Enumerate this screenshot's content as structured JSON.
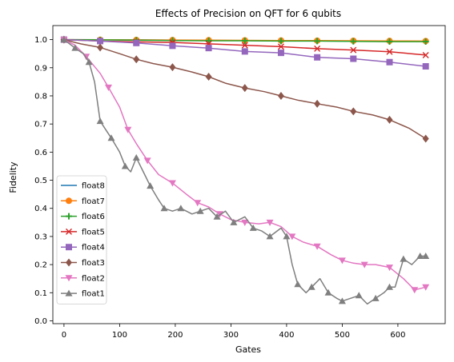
{
  "chart_data": {
    "type": "line",
    "title": "Effects of Precision on QFT for 6 qubits",
    "xlabel": "Gates",
    "ylabel": "Fidelity",
    "xlim": [
      -20,
      685
    ],
    "ylim": [
      -0.01,
      1.05
    ],
    "xticks": [
      0,
      100,
      200,
      300,
      400,
      500,
      600
    ],
    "yticks": [
      0.0,
      0.1,
      0.2,
      0.3,
      0.4,
      0.5,
      0.6,
      0.7,
      0.8,
      0.9,
      1.0
    ],
    "xtick_labels": [
      "0",
      "100",
      "200",
      "300",
      "400",
      "500",
      "600"
    ],
    "ytick_labels": [
      "0.0",
      "0.1",
      "0.2",
      "0.3",
      "0.4",
      "0.5",
      "0.6",
      "0.7",
      "0.8",
      "0.9",
      "1.0"
    ],
    "grid": false,
    "legend_position": "lower-left",
    "series": [
      {
        "name": "float8",
        "color": "#1f77b4",
        "marker": "none",
        "x": [
          0,
          100,
          200,
          300,
          400,
          500,
          650
        ],
        "y": [
          1.0,
          0.999,
          0.998,
          0.997,
          0.996,
          0.995,
          0.994
        ]
      },
      {
        "name": "float7",
        "color": "#ff7f0e",
        "marker": "circle",
        "x": [
          0,
          65,
          130,
          195,
          260,
          325,
          390,
          455,
          520,
          585,
          650
        ],
        "y": [
          1.0,
          0.9995,
          0.999,
          0.9985,
          0.998,
          0.9975,
          0.997,
          0.9965,
          0.996,
          0.9955,
          0.995
        ]
      },
      {
        "name": "float6",
        "color": "#2ca02c",
        "marker": "plus",
        "x": [
          0,
          65,
          130,
          195,
          260,
          325,
          390,
          455,
          520,
          585,
          650
        ],
        "y": [
          1.0,
          0.999,
          0.998,
          0.997,
          0.996,
          0.996,
          0.995,
          0.995,
          0.994,
          0.993,
          0.993
        ]
      },
      {
        "name": "float5",
        "color": "#d62728",
        "marker": "x",
        "x": [
          0,
          65,
          130,
          195,
          260,
          325,
          390,
          455,
          520,
          585,
          650
        ],
        "y": [
          1.0,
          0.995,
          0.992,
          0.99,
          0.985,
          0.98,
          0.975,
          0.968,
          0.963,
          0.957,
          0.945
        ]
      },
      {
        "name": "float4",
        "color": "#9467bd",
        "marker": "square",
        "x": [
          0,
          65,
          130,
          195,
          260,
          325,
          390,
          455,
          520,
          585,
          650
        ],
        "y": [
          1.0,
          0.995,
          0.988,
          0.978,
          0.97,
          0.958,
          0.953,
          0.937,
          0.932,
          0.92,
          0.905
        ]
      },
      {
        "name": "float3",
        "color": "#8c564b",
        "marker": "diamond",
        "x": [
          0,
          30,
          65,
          100,
          130,
          160,
          195,
          230,
          260,
          290,
          325,
          360,
          390,
          420,
          455,
          490,
          520,
          555,
          585,
          620,
          650
        ],
        "y": [
          1.0,
          0.985,
          0.972,
          0.95,
          0.93,
          0.915,
          0.902,
          0.885,
          0.868,
          0.845,
          0.828,
          0.815,
          0.8,
          0.785,
          0.772,
          0.76,
          0.745,
          0.732,
          0.715,
          0.685,
          0.648
        ]
      },
      {
        "name": "float2",
        "color": "#e377c2",
        "marker": "triangle-down",
        "x": [
          0,
          20,
          40,
          65,
          80,
          100,
          115,
          130,
          150,
          170,
          195,
          220,
          240,
          260,
          280,
          300,
          325,
          350,
          370,
          390,
          410,
          430,
          455,
          480,
          500,
          520,
          540,
          560,
          585,
          610,
          630,
          650
        ],
        "y": [
          1.0,
          0.98,
          0.94,
          0.88,
          0.83,
          0.76,
          0.68,
          0.63,
          0.57,
          0.52,
          0.49,
          0.45,
          0.42,
          0.405,
          0.38,
          0.36,
          0.35,
          0.345,
          0.35,
          0.335,
          0.3,
          0.28,
          0.265,
          0.235,
          0.215,
          0.205,
          0.2,
          0.2,
          0.19,
          0.15,
          0.11,
          0.12
        ]
      },
      {
        "name": "float1",
        "color": "#7f7f7f",
        "marker": "triangle-up",
        "x": [
          0,
          10,
          20,
          35,
          45,
          55,
          65,
          75,
          85,
          100,
          110,
          120,
          130,
          145,
          155,
          170,
          180,
          195,
          210,
          230,
          245,
          260,
          275,
          290,
          305,
          325,
          340,
          355,
          370,
          390,
          400,
          410,
          420,
          435,
          445,
          460,
          475,
          490,
          500,
          515,
          530,
          545,
          560,
          575,
          585,
          595,
          610,
          625,
          640,
          650
        ],
        "y": [
          1.0,
          0.985,
          0.97,
          0.95,
          0.92,
          0.85,
          0.71,
          0.68,
          0.65,
          0.6,
          0.55,
          0.53,
          0.58,
          0.52,
          0.48,
          0.43,
          0.4,
          0.39,
          0.4,
          0.38,
          0.39,
          0.4,
          0.37,
          0.39,
          0.35,
          0.37,
          0.33,
          0.32,
          0.3,
          0.33,
          0.3,
          0.2,
          0.13,
          0.1,
          0.12,
          0.15,
          0.1,
          0.08,
          0.07,
          0.08,
          0.09,
          0.06,
          0.08,
          0.1,
          0.12,
          0.12,
          0.22,
          0.2,
          0.23,
          0.23
        ]
      }
    ]
  }
}
